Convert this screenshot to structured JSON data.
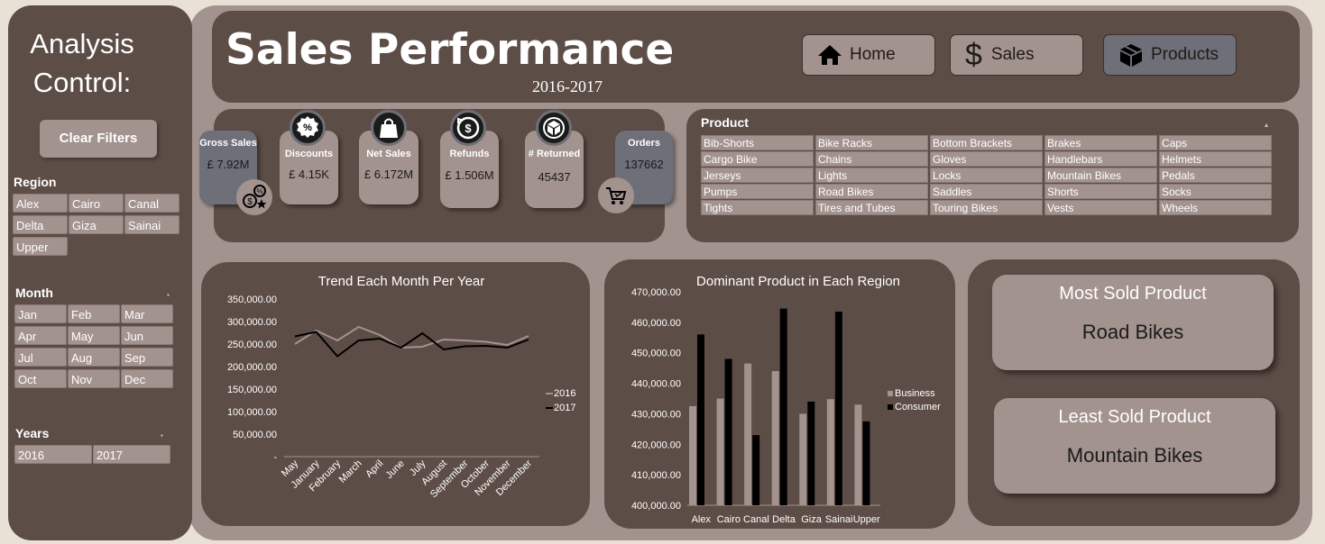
{
  "sidebar": {
    "title_line1": "Analysis",
    "title_line2": "Control:",
    "clear_filters": "Clear Filters",
    "region_label": "Region",
    "regions": [
      "Alex",
      "Cairo",
      "Canal",
      "Delta",
      "Giza",
      "Sainai",
      "Upper"
    ],
    "month_label": "Month",
    "months": [
      "Jan",
      "Feb",
      "Mar",
      "Apr",
      "May",
      "Jun",
      "Jul",
      "Aug",
      "Sep",
      "Oct",
      "Nov",
      "Dec"
    ],
    "years_label": "Years",
    "years": [
      "2016",
      "2017"
    ]
  },
  "header": {
    "title": "Sales Performance",
    "subtitle": "2016-2017",
    "nav": [
      "Home",
      "Sales",
      "Products"
    ]
  },
  "kpis": {
    "gross_sales": {
      "label": "Gross Sales",
      "value": "£ 7.92M"
    },
    "discounts": {
      "label": "Discounts",
      "value": "£ 4.15K"
    },
    "net_sales": {
      "label": "Net Sales",
      "value": "£ 6.172M"
    },
    "refunds": {
      "label": "Refunds",
      "value": "£ 1.506M"
    },
    "returned": {
      "label": "# Returned",
      "value": "45437"
    },
    "orders": {
      "label": "Orders",
      "value": "137662"
    }
  },
  "products": {
    "label": "Product",
    "items": [
      "Bib-Shorts",
      "Bike Racks",
      "Bottom Brackets",
      "Brakes",
      "Caps",
      "Cargo Bike",
      "Chains",
      "Gloves",
      "Handlebars",
      "Helmets",
      "Jerseys",
      "Lights",
      "Locks",
      "Mountain Bikes",
      "Pedals",
      "Pumps",
      "Road Bikes",
      "Saddles",
      "Shorts",
      "Socks",
      "Tights",
      "Tires and Tubes",
      "Touring Bikes",
      "Vests",
      "Wheels"
    ]
  },
  "summary": {
    "most_sold_label": "Most Sold Product",
    "most_sold_value": "Road Bikes",
    "least_sold_label": "Least Sold Product",
    "least_sold_value": "Mountain Bikes"
  },
  "colors": {
    "panel": "#5d4d47",
    "panel_light": "#a3938f",
    "series_2016": "#a3938f",
    "series_2017": "#000000"
  },
  "chart_data": [
    {
      "type": "line",
      "title": "Trend Each Month Per Year",
      "categories": [
        "May",
        "January",
        "February",
        "March",
        "April",
        "June",
        "July",
        "August",
        "September",
        "October",
        "November",
        "December"
      ],
      "series": [
        {
          "name": "2016",
          "values": [
            250000,
            280000,
            258000,
            288000,
            270000,
            242000,
            244000,
            260000,
            258000,
            255000,
            248000,
            268000
          ]
        },
        {
          "name": "2017",
          "values": [
            267000,
            277000,
            223000,
            258000,
            262000,
            242000,
            274000,
            238000,
            245000,
            246000,
            242000,
            260000
          ]
        }
      ],
      "ylim": [
        0,
        350000
      ],
      "yticks": [
        "-",
        "50,000.00",
        "100,000.00",
        "150,000.00",
        "200,000.00",
        "250,000.00",
        "300,000.00",
        "350,000.00"
      ],
      "legend": "right"
    },
    {
      "type": "bar",
      "title": "Dominant Product in Each Region",
      "categories": [
        "Alex",
        "Cairo",
        "Canal",
        "Delta",
        "Giza",
        "Sainai",
        "Upper"
      ],
      "series": [
        {
          "name": "Business",
          "values": [
            432500,
            435000,
            446500,
            444000,
            430000,
            434800,
            433000
          ]
        },
        {
          "name": "Consumer",
          "values": [
            456000,
            448000,
            423000,
            464500,
            434000,
            463500,
            427500
          ]
        }
      ],
      "ylim": [
        400000,
        470000
      ],
      "yticks": [
        "400,000.00",
        "410,000.00",
        "420,000.00",
        "430,000.00",
        "440,000.00",
        "450,000.00",
        "460,000.00",
        "470,000.00"
      ],
      "legend": "right"
    }
  ]
}
